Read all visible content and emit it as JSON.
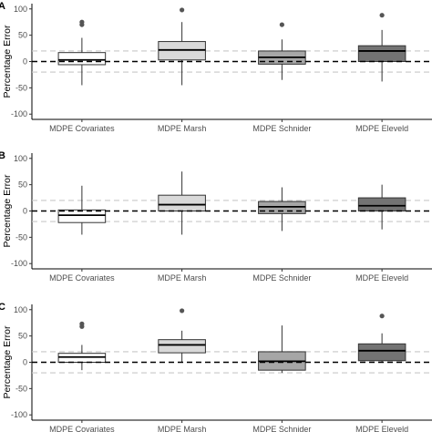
{
  "chart_data": [
    {
      "type": "box",
      "panel": "A",
      "ylabel": "Percentage Error",
      "ylim": [
        -110,
        110
      ],
      "yticks": [
        -100,
        -50,
        0,
        50,
        100
      ],
      "categories": [
        "MDPE Covariates",
        "MDPE Marsh",
        "MDPE Schnider",
        "MDPE Eleveld"
      ],
      "boxes": [
        {
          "fill": "#ffffff",
          "whisker_low": -45,
          "q1": -6,
          "median": 3,
          "q3": 17,
          "whisker_high": 45,
          "outliers": [
            75,
            70
          ]
        },
        {
          "fill": "#d9d9d9",
          "whisker_low": -45,
          "q1": 3,
          "median": 22,
          "q3": 38,
          "whisker_high": 75,
          "outliers": [
            98
          ]
        },
        {
          "fill": "#a6a6a6",
          "whisker_low": -35,
          "q1": -5,
          "median": 8,
          "q3": 20,
          "whisker_high": 42,
          "outliers": [
            70
          ]
        },
        {
          "fill": "#737373",
          "whisker_low": -38,
          "q1": 0,
          "median": 20,
          "q3": 30,
          "whisker_high": 60,
          "outliers": [
            88
          ]
        }
      ],
      "reference_lines": {
        "zero": 0,
        "limits": [
          -20,
          20
        ]
      }
    },
    {
      "type": "box",
      "panel": "B",
      "ylabel": "Percentage Error",
      "ylim": [
        -110,
        110
      ],
      "yticks": [
        -100,
        -50,
        0,
        50,
        100
      ],
      "categories": [
        "MDPE Covariates",
        "MDPE Marsh",
        "MDPE Schnider",
        "MDPE Eleveld"
      ],
      "boxes": [
        {
          "fill": "#ffffff",
          "whisker_low": -45,
          "q1": -22,
          "median": -8,
          "q3": 2,
          "whisker_high": 48,
          "outliers": []
        },
        {
          "fill": "#d9d9d9",
          "whisker_low": -45,
          "q1": 0,
          "median": 12,
          "q3": 30,
          "whisker_high": 75,
          "outliers": []
        },
        {
          "fill": "#a6a6a6",
          "whisker_low": -38,
          "q1": -5,
          "median": 8,
          "q3": 18,
          "whisker_high": 45,
          "outliers": []
        },
        {
          "fill": "#737373",
          "whisker_low": -35,
          "q1": 0,
          "median": 10,
          "q3": 25,
          "whisker_high": 50,
          "outliers": []
        }
      ],
      "reference_lines": {
        "zero": 0,
        "limits": [
          -20,
          20
        ]
      }
    },
    {
      "type": "box",
      "panel": "C",
      "ylabel": "Percentage Error",
      "ylim": [
        -110,
        110
      ],
      "yticks": [
        -100,
        -50,
        0,
        50,
        100
      ],
      "categories": [
        "MDPE Covariates",
        "MDPE Marsh",
        "MDPE Schnider",
        "MDPE Eleveld"
      ],
      "boxes": [
        {
          "fill": "#ffffff",
          "whisker_low": -15,
          "q1": 0,
          "median": 10,
          "q3": 17,
          "whisker_high": 33,
          "outliers": [
            73,
            68
          ]
        },
        {
          "fill": "#d9d9d9",
          "whisker_low": 0,
          "q1": 18,
          "median": 33,
          "q3": 43,
          "whisker_high": 60,
          "outliers": [
            98
          ]
        },
        {
          "fill": "#a6a6a6",
          "whisker_low": -20,
          "q1": -15,
          "median": 2,
          "q3": 20,
          "whisker_high": 70,
          "outliers": []
        },
        {
          "fill": "#737373",
          "whisker_low": 0,
          "q1": 3,
          "median": 22,
          "q3": 35,
          "whisker_high": 55,
          "outliers": [
            88
          ]
        }
      ],
      "reference_lines": {
        "zero": 0,
        "limits": [
          -20,
          20
        ]
      }
    }
  ]
}
